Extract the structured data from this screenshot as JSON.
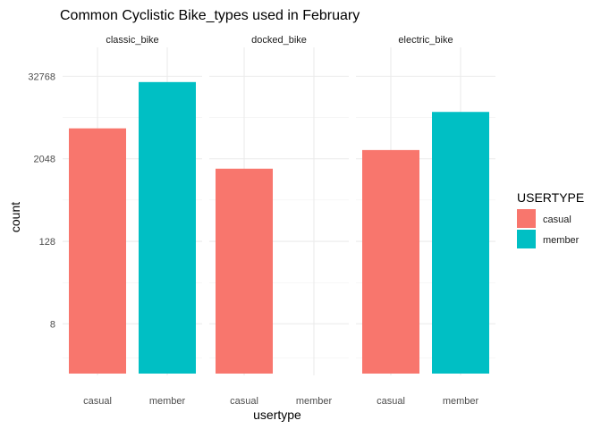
{
  "chart_data": {
    "type": "bar",
    "title": "Common Cyclistic Bike_types used in February",
    "xlabel": "usertype",
    "ylabel": "count",
    "y_scale": "log2",
    "y_ticks": [
      8,
      128,
      2048,
      32768
    ],
    "ylim": [
      1,
      32768
    ],
    "grid": true,
    "legend_position": "right",
    "legend_title": "USERTYPE",
    "categories": [
      "casual",
      "member"
    ],
    "facets": [
      {
        "name": "classic_bike",
        "values": {
          "casual": 5700,
          "member": 27000
        }
      },
      {
        "name": "docked_bike",
        "values": {
          "casual": 1470,
          "member": null
        }
      },
      {
        "name": "electric_bike",
        "values": {
          "casual": 2750,
          "member": 9900
        }
      }
    ],
    "series": [
      {
        "name": "casual",
        "color": "#F8766D"
      },
      {
        "name": "member",
        "color": "#00BFC4"
      }
    ]
  }
}
